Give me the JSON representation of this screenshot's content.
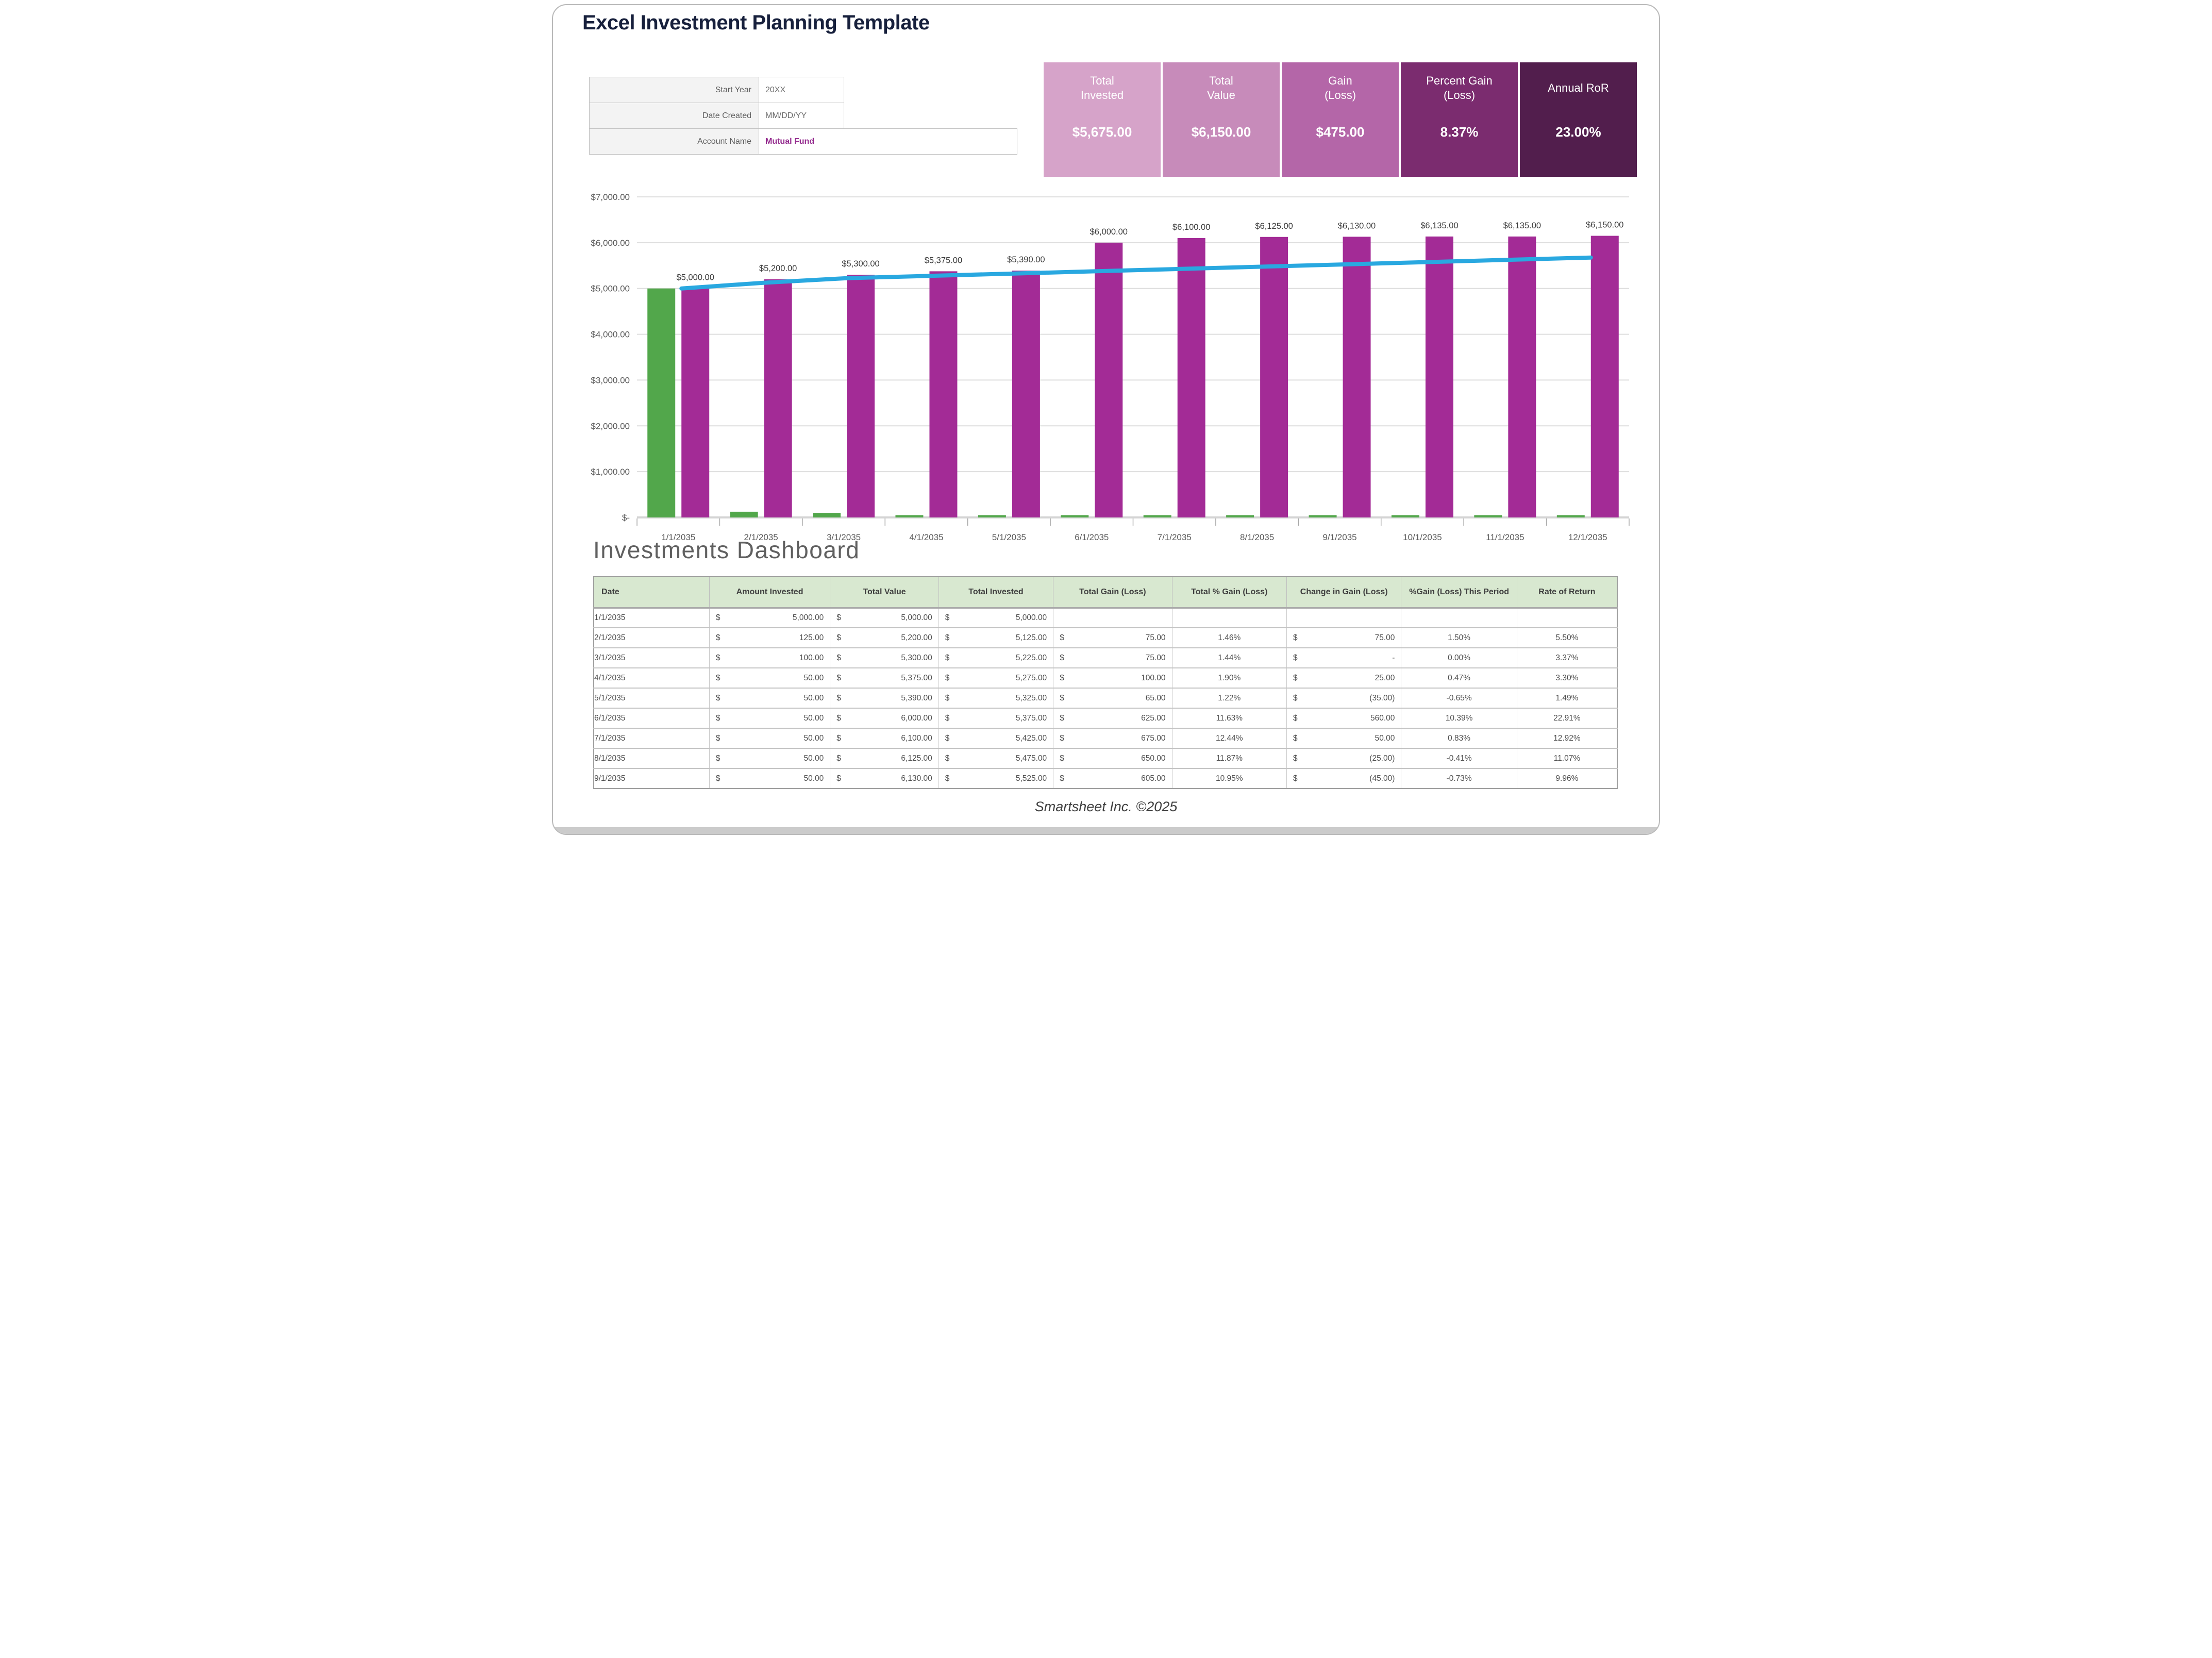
{
  "header": {
    "title": "Excel Investment Planning Template"
  },
  "form": {
    "rows": [
      {
        "label": "Start Year",
        "value": "20XX"
      },
      {
        "label": "Date Created",
        "value": "MM/DD/YY"
      },
      {
        "label": "Account Name",
        "value": "Mutual Fund"
      }
    ]
  },
  "kpis": [
    {
      "label_lines": [
        "Total",
        "Invested"
      ],
      "value": "$5,675.00",
      "bg": "#d6a3c9"
    },
    {
      "label_lines": [
        "Total",
        "Value"
      ],
      "value": "$6,150.00",
      "bg": "#c78bba"
    },
    {
      "label_lines": [
        "Gain",
        "(Loss)"
      ],
      "value": "$475.00",
      "bg": "#b466a8"
    },
    {
      "label_lines": [
        "Percent Gain",
        "(Loss)"
      ],
      "value": "8.37%",
      "bg": "#7b2c6f"
    },
    {
      "label_lines": [
        "Annual RoR"
      ],
      "value": "23.00%",
      "bg": "#521e4d"
    }
  ],
  "chart_data": {
    "type": "bar",
    "categories": [
      "1/1/2035",
      "2/1/2035",
      "3/1/2035",
      "4/1/2035",
      "5/1/2035",
      "6/1/2035",
      "7/1/2035",
      "8/1/2035",
      "9/1/2035",
      "10/1/2035",
      "11/1/2035",
      "12/1/2035"
    ],
    "series": [
      {
        "name": "Amount Invested",
        "render": "bar",
        "color": "#52a74b",
        "values": [
          5000,
          125,
          100,
          50,
          50,
          50,
          50,
          50,
          50,
          50,
          50,
          50
        ]
      },
      {
        "name": "Total Value",
        "render": "bar",
        "color": "#a32b96",
        "values": [
          5000,
          5200,
          5300,
          5375,
          5390,
          6000,
          6100,
          6125,
          6130,
          6135,
          6135,
          6150
        ]
      },
      {
        "name": "Total Invested",
        "render": "line",
        "color": "#29a8e0",
        "values": [
          5000,
          5125,
          5225,
          5275,
          5325,
          5375,
          5425,
          5475,
          5525,
          5575,
          5625,
          5675
        ]
      }
    ],
    "data_labels": [
      "$5,000.00",
      "$5,200.00",
      "$5,300.00",
      "$5,375.00",
      "$5,390.00",
      "$6,000.00",
      "$6,100.00",
      "$6,125.00",
      "$6,130.00",
      "$6,135.00",
      "$6,135.00",
      "$6,150.00"
    ],
    "y_ticks": [
      "$7,000.00",
      "$6,000.00",
      "$5,000.00",
      "$4,000.00",
      "$3,000.00",
      "$2,000.00",
      "$1,000.00",
      "$-"
    ],
    "ylim": [
      0,
      7000
    ],
    "grid": true,
    "legend": "none",
    "title": "",
    "xlabel": "",
    "ylabel": ""
  },
  "dashboard": {
    "title": "Investments Dashboard",
    "currency": "$",
    "columns": [
      {
        "label": "Date",
        "key": "date",
        "type": "date",
        "width": "11.3%"
      },
      {
        "label": "Amount Invested",
        "key": "amount_invested",
        "type": "money",
        "width": "11.8%"
      },
      {
        "label": "Total Value",
        "key": "total_value",
        "type": "money",
        "width": "10.6%"
      },
      {
        "label": "Total Invested",
        "key": "total_invested",
        "type": "money",
        "width": "11.2%",
        "shade": true
      },
      {
        "label": "Total Gain (Loss)",
        "key": "total_gain",
        "type": "money",
        "width": "11.6%"
      },
      {
        "label": "Total % Gain (Loss)",
        "key": "total_pct_gain",
        "type": "pct",
        "width": "11.2%"
      },
      {
        "label": "Change in Gain (Loss)",
        "key": "change_gain",
        "type": "money",
        "width": "11.2%"
      },
      {
        "label": "%Gain (Loss) This Period",
        "key": "pct_gain_period",
        "type": "pct",
        "width": "11.3%"
      },
      {
        "label": "Rate of Return",
        "key": "rate_of_return",
        "type": "pct",
        "width": "9.8%"
      }
    ],
    "rows": [
      {
        "date": "1/1/2035",
        "amount_invested": "5,000.00",
        "total_value": "5,000.00",
        "total_invested": "5,000.00",
        "total_gain": null,
        "total_pct_gain": null,
        "change_gain": null,
        "pct_gain_period": null,
        "rate_of_return": null
      },
      {
        "date": "2/1/2035",
        "amount_invested": "125.00",
        "total_value": "5,200.00",
        "total_invested": "5,125.00",
        "total_gain": "75.00",
        "total_pct_gain": "1.46%",
        "change_gain": "75.00",
        "pct_gain_period": "1.50%",
        "rate_of_return": "5.50%"
      },
      {
        "date": "3/1/2035",
        "amount_invested": "100.00",
        "total_value": "5,300.00",
        "total_invested": "5,225.00",
        "total_gain": "75.00",
        "total_pct_gain": "1.44%",
        "change_gain": "-",
        "pct_gain_period": "0.00%",
        "rate_of_return": "3.37%"
      },
      {
        "date": "4/1/2035",
        "amount_invested": "50.00",
        "total_value": "5,375.00",
        "total_invested": "5,275.00",
        "total_gain": "100.00",
        "total_pct_gain": "1.90%",
        "change_gain": "25.00",
        "pct_gain_period": "0.47%",
        "rate_of_return": "3.30%"
      },
      {
        "date": "5/1/2035",
        "amount_invested": "50.00",
        "total_value": "5,390.00",
        "total_invested": "5,325.00",
        "total_gain": "65.00",
        "total_pct_gain": "1.22%",
        "change_gain": "(35.00)",
        "pct_gain_period": "-0.65%",
        "rate_of_return": "1.49%"
      },
      {
        "date": "6/1/2035",
        "amount_invested": "50.00",
        "total_value": "6,000.00",
        "total_invested": "5,375.00",
        "total_gain": "625.00",
        "total_pct_gain": "11.63%",
        "change_gain": "560.00",
        "pct_gain_period": "10.39%",
        "rate_of_return": "22.91%"
      },
      {
        "date": "7/1/2035",
        "amount_invested": "50.00",
        "total_value": "6,100.00",
        "total_invested": "5,425.00",
        "total_gain": "675.00",
        "total_pct_gain": "12.44%",
        "change_gain": "50.00",
        "pct_gain_period": "0.83%",
        "rate_of_return": "12.92%"
      },
      {
        "date": "8/1/2035",
        "amount_invested": "50.00",
        "total_value": "6,125.00",
        "total_invested": "5,475.00",
        "total_gain": "650.00",
        "total_pct_gain": "11.87%",
        "change_gain": "(25.00)",
        "pct_gain_period": "-0.41%",
        "rate_of_return": "11.07%"
      },
      {
        "date": "9/1/2035",
        "amount_invested": "50.00",
        "total_value": "6,130.00",
        "total_invested": "5,525.00",
        "total_gain": "605.00",
        "total_pct_gain": "10.95%",
        "change_gain": "(45.00)",
        "pct_gain_period": "-0.73%",
        "rate_of_return": "9.96%"
      }
    ]
  },
  "footer": {
    "text": "Smartsheet Inc. ©2025"
  },
  "theme": {
    "title_color": "#17203c",
    "bar_green": "#52a74b",
    "bar_purple": "#a32b96",
    "line_blue": "#29a8e0",
    "table_header_bg": "#d8e8d0",
    "account_name_color": "#942b8e",
    "dark_cell_bg": "#3a3a3a"
  }
}
